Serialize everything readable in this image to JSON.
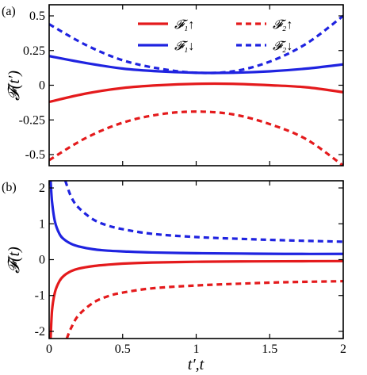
{
  "panels": {
    "a": {
      "tag": "(a)",
      "ylabel": "𝓕(t′)"
    },
    "b": {
      "tag": "(b)",
      "ylabel": "𝓕(t)"
    }
  },
  "xlabel": "t′,t",
  "legend": {
    "entries": [
      {
        "id": "F1up",
        "label": "𝓕₁↑",
        "color": "#e41a1c",
        "dash": "solid"
      },
      {
        "id": "F2up",
        "label": "𝓕₂↑",
        "color": "#e41a1c",
        "dash": "dashed"
      },
      {
        "id": "F1dn",
        "label": "𝓕₁↓",
        "color": "#1f23e0",
        "dash": "solid"
      },
      {
        "id": "F2dn",
        "label": "𝓕₂↓",
        "color": "#1f23e0",
        "dash": "dashed"
      }
    ]
  },
  "colors": {
    "red": "#e41a1c",
    "blue": "#1f23e0"
  },
  "chart_data": [
    {
      "type": "line",
      "panel": "a",
      "xlim": [
        0,
        2
      ],
      "ylim": [
        -0.58,
        0.58
      ],
      "yticks": [
        -0.5,
        -0.25,
        0,
        0.25,
        0.5
      ],
      "yticklabels": [
        "-0.5",
        "-0.25",
        "0",
        "0.25",
        "0.5"
      ],
      "xticks": [
        0,
        0.5,
        1,
        1.5,
        2
      ],
      "series": [
        {
          "name": "𝓕₁↑",
          "color": "#e41a1c",
          "dash": "solid",
          "x": [
            0,
            0.25,
            0.5,
            0.75,
            1.0,
            1.25,
            1.5,
            1.75,
            2.0
          ],
          "y": [
            -0.12,
            -0.06,
            -0.02,
            0.0,
            0.01,
            0.01,
            0.0,
            -0.015,
            -0.05
          ]
        },
        {
          "name": "𝓕₂↑",
          "color": "#e41a1c",
          "dash": "dashed",
          "x": [
            0,
            0.25,
            0.5,
            0.75,
            1.0,
            1.25,
            1.5,
            1.75,
            2.0
          ],
          "y": [
            -0.54,
            -0.38,
            -0.27,
            -0.21,
            -0.19,
            -0.21,
            -0.28,
            -0.39,
            -0.58
          ]
        },
        {
          "name": "𝓕₁↓",
          "color": "#1f23e0",
          "dash": "solid",
          "x": [
            0,
            0.25,
            0.5,
            0.75,
            1.0,
            1.25,
            1.5,
            1.75,
            2.0
          ],
          "y": [
            0.21,
            0.16,
            0.12,
            0.1,
            0.09,
            0.09,
            0.1,
            0.12,
            0.15
          ]
        },
        {
          "name": "𝓕₂↓",
          "color": "#1f23e0",
          "dash": "dashed",
          "x": [
            0,
            0.25,
            0.5,
            0.75,
            1.0,
            1.25,
            1.5,
            1.75,
            2.0
          ],
          "y": [
            0.44,
            0.29,
            0.18,
            0.12,
            0.09,
            0.1,
            0.17,
            0.3,
            0.5
          ]
        }
      ]
    },
    {
      "type": "line",
      "panel": "b",
      "xlim": [
        0,
        2
      ],
      "ylim": [
        -2.2,
        2.2
      ],
      "yticks": [
        -2,
        -1,
        0,
        1,
        2
      ],
      "yticklabels": [
        "-2",
        "-1",
        "0",
        "1",
        "2"
      ],
      "xticks": [
        0,
        0.5,
        1,
        1.5,
        2
      ],
      "xticklabels": [
        "0",
        "0.5",
        "1",
        "1.5",
        "2"
      ],
      "series": [
        {
          "name": "𝓕₁↑",
          "color": "#e41a1c",
          "dash": "solid",
          "x": [
            0.01,
            0.02,
            0.04,
            0.07,
            0.1,
            0.15,
            0.2,
            0.3,
            0.4,
            0.5,
            0.7,
            1.0,
            1.3,
            1.6,
            2.0
          ],
          "y": [
            -2.2,
            -1.4,
            -0.9,
            -0.6,
            -0.45,
            -0.32,
            -0.25,
            -0.18,
            -0.14,
            -0.11,
            -0.08,
            -0.06,
            -0.05,
            -0.045,
            -0.04
          ]
        },
        {
          "name": "𝓕₂↑",
          "color": "#e41a1c",
          "dash": "dashed",
          "x": [
            0.12,
            0.15,
            0.2,
            0.3,
            0.4,
            0.5,
            0.7,
            1.0,
            1.3,
            1.6,
            2.0
          ],
          "y": [
            -2.2,
            -1.9,
            -1.55,
            -1.2,
            -1.02,
            -0.92,
            -0.8,
            -0.72,
            -0.67,
            -0.63,
            -0.6
          ]
        },
        {
          "name": "𝓕₁↓",
          "color": "#1f23e0",
          "dash": "solid",
          "x": [
            0.01,
            0.02,
            0.04,
            0.07,
            0.1,
            0.15,
            0.2,
            0.3,
            0.4,
            0.5,
            0.7,
            1.0,
            1.3,
            1.6,
            2.0
          ],
          "y": [
            2.2,
            1.6,
            1.05,
            0.72,
            0.57,
            0.44,
            0.37,
            0.29,
            0.25,
            0.23,
            0.2,
            0.18,
            0.17,
            0.16,
            0.16
          ]
        },
        {
          "name": "𝓕₂↓",
          "color": "#1f23e0",
          "dash": "dashed",
          "x": [
            0.11,
            0.15,
            0.2,
            0.3,
            0.4,
            0.5,
            0.7,
            1.0,
            1.3,
            1.6,
            2.0
          ],
          "y": [
            2.2,
            1.75,
            1.45,
            1.12,
            0.95,
            0.85,
            0.72,
            0.63,
            0.58,
            0.54,
            0.5
          ]
        }
      ]
    }
  ]
}
